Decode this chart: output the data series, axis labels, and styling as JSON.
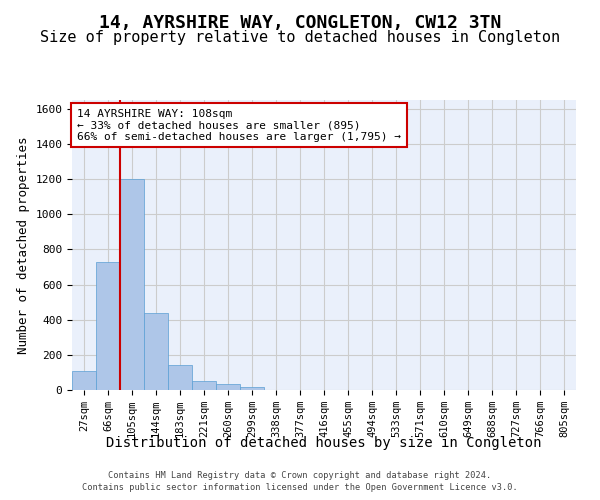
{
  "title_line1": "14, AYRSHIRE WAY, CONGLETON, CW12 3TN",
  "title_line2": "Size of property relative to detached houses in Congleton",
  "xlabel": "Distribution of detached houses by size in Congleton",
  "ylabel": "Number of detached properties",
  "footer_line1": "Contains HM Land Registry data © Crown copyright and database right 2024.",
  "footer_line2": "Contains public sector information licensed under the Open Government Licence v3.0.",
  "bin_labels": [
    "27sqm",
    "66sqm",
    "105sqm",
    "144sqm",
    "183sqm",
    "221sqm",
    "260sqm",
    "299sqm",
    "338sqm",
    "377sqm",
    "416sqm",
    "455sqm",
    "494sqm",
    "533sqm",
    "571sqm",
    "610sqm",
    "649sqm",
    "688sqm",
    "727sqm",
    "766sqm",
    "805sqm"
  ],
  "bar_values": [
    107,
    730,
    1200,
    440,
    140,
    52,
    32,
    18,
    0,
    0,
    0,
    0,
    0,
    0,
    0,
    0,
    0,
    0,
    0,
    0,
    0
  ],
  "bar_color": "#aec6e8",
  "bar_edge_color": "#5a9fd4",
  "vline_x": 1.5,
  "annotation_text": "14 AYRSHIRE WAY: 108sqm\n← 33% of detached houses are smaller (895)\n66% of semi-detached houses are larger (1,795) →",
  "annotation_box_color": "#ffffff",
  "annotation_box_edge_color": "#cc0000",
  "vline_color": "#cc0000",
  "ylim": [
    0,
    1650
  ],
  "yticks": [
    0,
    200,
    400,
    600,
    800,
    1000,
    1200,
    1400,
    1600
  ],
  "grid_color": "#cccccc",
  "bg_color": "#eaf0fb",
  "title_fontsize": 13,
  "subtitle_fontsize": 11,
  "axis_label_fontsize": 9,
  "tick_fontsize": 7.5,
  "annotation_fontsize": 8
}
